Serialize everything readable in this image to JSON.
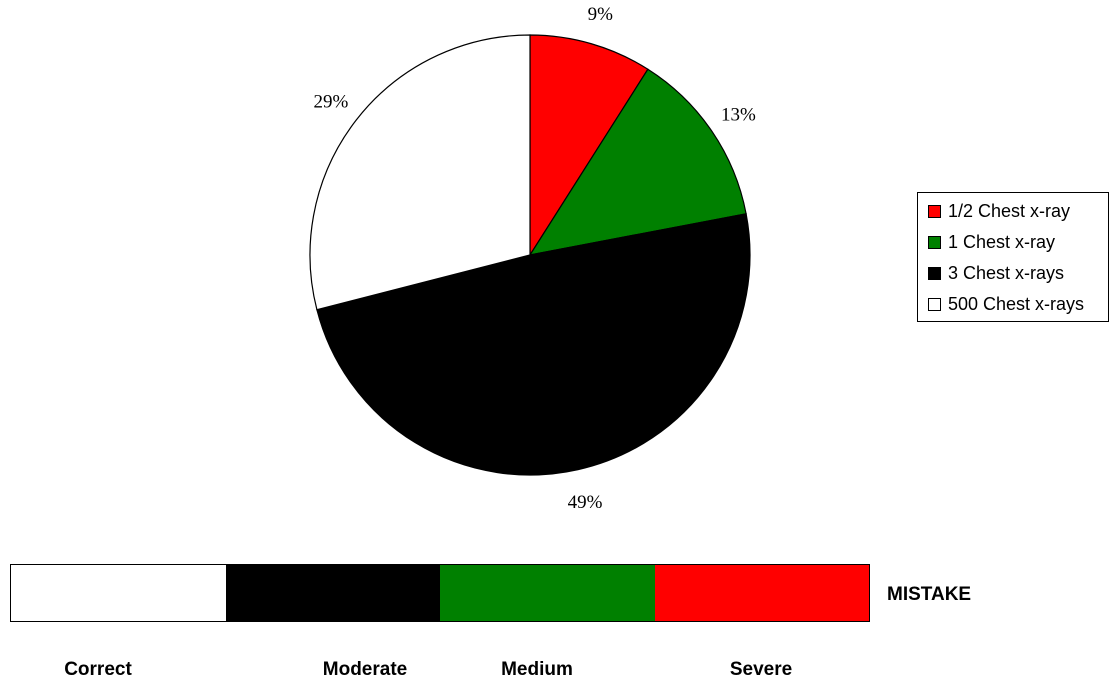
{
  "chart_data": {
    "type": "pie",
    "slices": [
      {
        "label": "1/2 Chest x-ray",
        "value": 9,
        "value_label": "9%",
        "color": "#ff0000"
      },
      {
        "label": "1 Chest x-ray",
        "value": 13,
        "value_label": "13%",
        "color": "#008000"
      },
      {
        "label": "3 Chest x-rays",
        "value": 49,
        "value_label": "49%",
        "color": "#000000"
      },
      {
        "label": "500 Chest x-rays",
        "value": 29,
        "value_label": "29%",
        "color": "#ffffff"
      }
    ],
    "start": "12 o'clock",
    "direction": "clockwise",
    "legend_position": "right"
  },
  "scale": {
    "title": "MISTAKE",
    "segments": [
      {
        "label": "Correct",
        "color": "#ffffff"
      },
      {
        "label": "Moderate",
        "color": "#000000"
      },
      {
        "label": "Medium",
        "color": "#008000"
      },
      {
        "label": "Severe",
        "color": "#ff0000"
      }
    ]
  }
}
